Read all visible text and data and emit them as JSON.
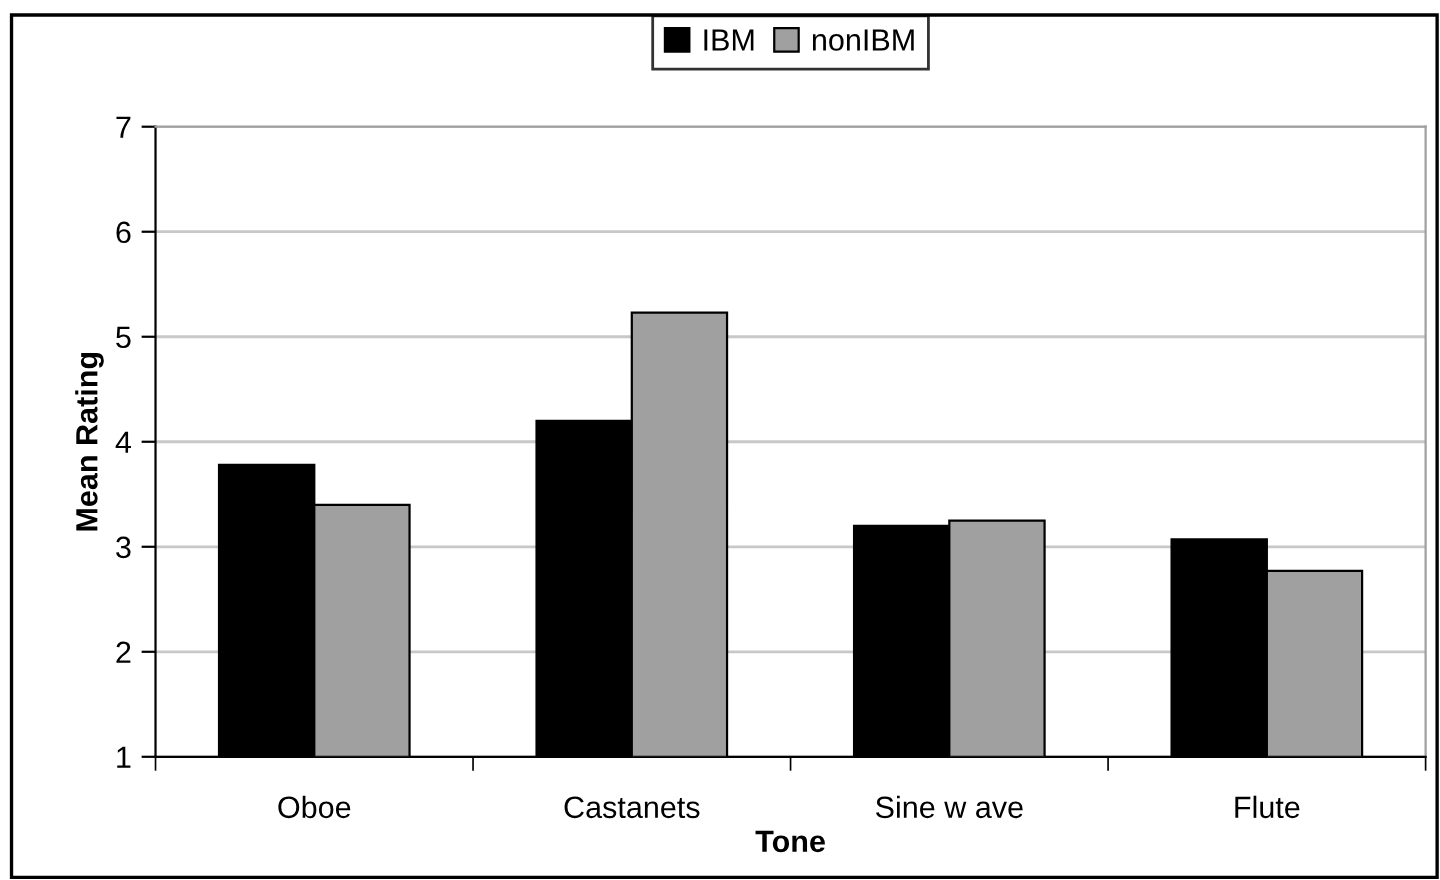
{
  "chart_data": {
    "type": "bar",
    "xlabel": "Tone",
    "ylabel": "Mean Rating",
    "categories": [
      "Oboe",
      "Castanets",
      "Sine w ave",
      "Flute"
    ],
    "series": [
      {
        "name": "IBM",
        "color": "#000000",
        "values": [
          3.78,
          4.2,
          3.2,
          3.07
        ]
      },
      {
        "name": "nonIBM",
        "color": "#a0a0a0",
        "values": [
          3.4,
          5.23,
          3.25,
          2.77
        ]
      }
    ],
    "ylim": [
      1,
      7
    ],
    "yticks": [
      1,
      2,
      3,
      4,
      5,
      6,
      7
    ],
    "grid": "y",
    "legend": "top"
  }
}
